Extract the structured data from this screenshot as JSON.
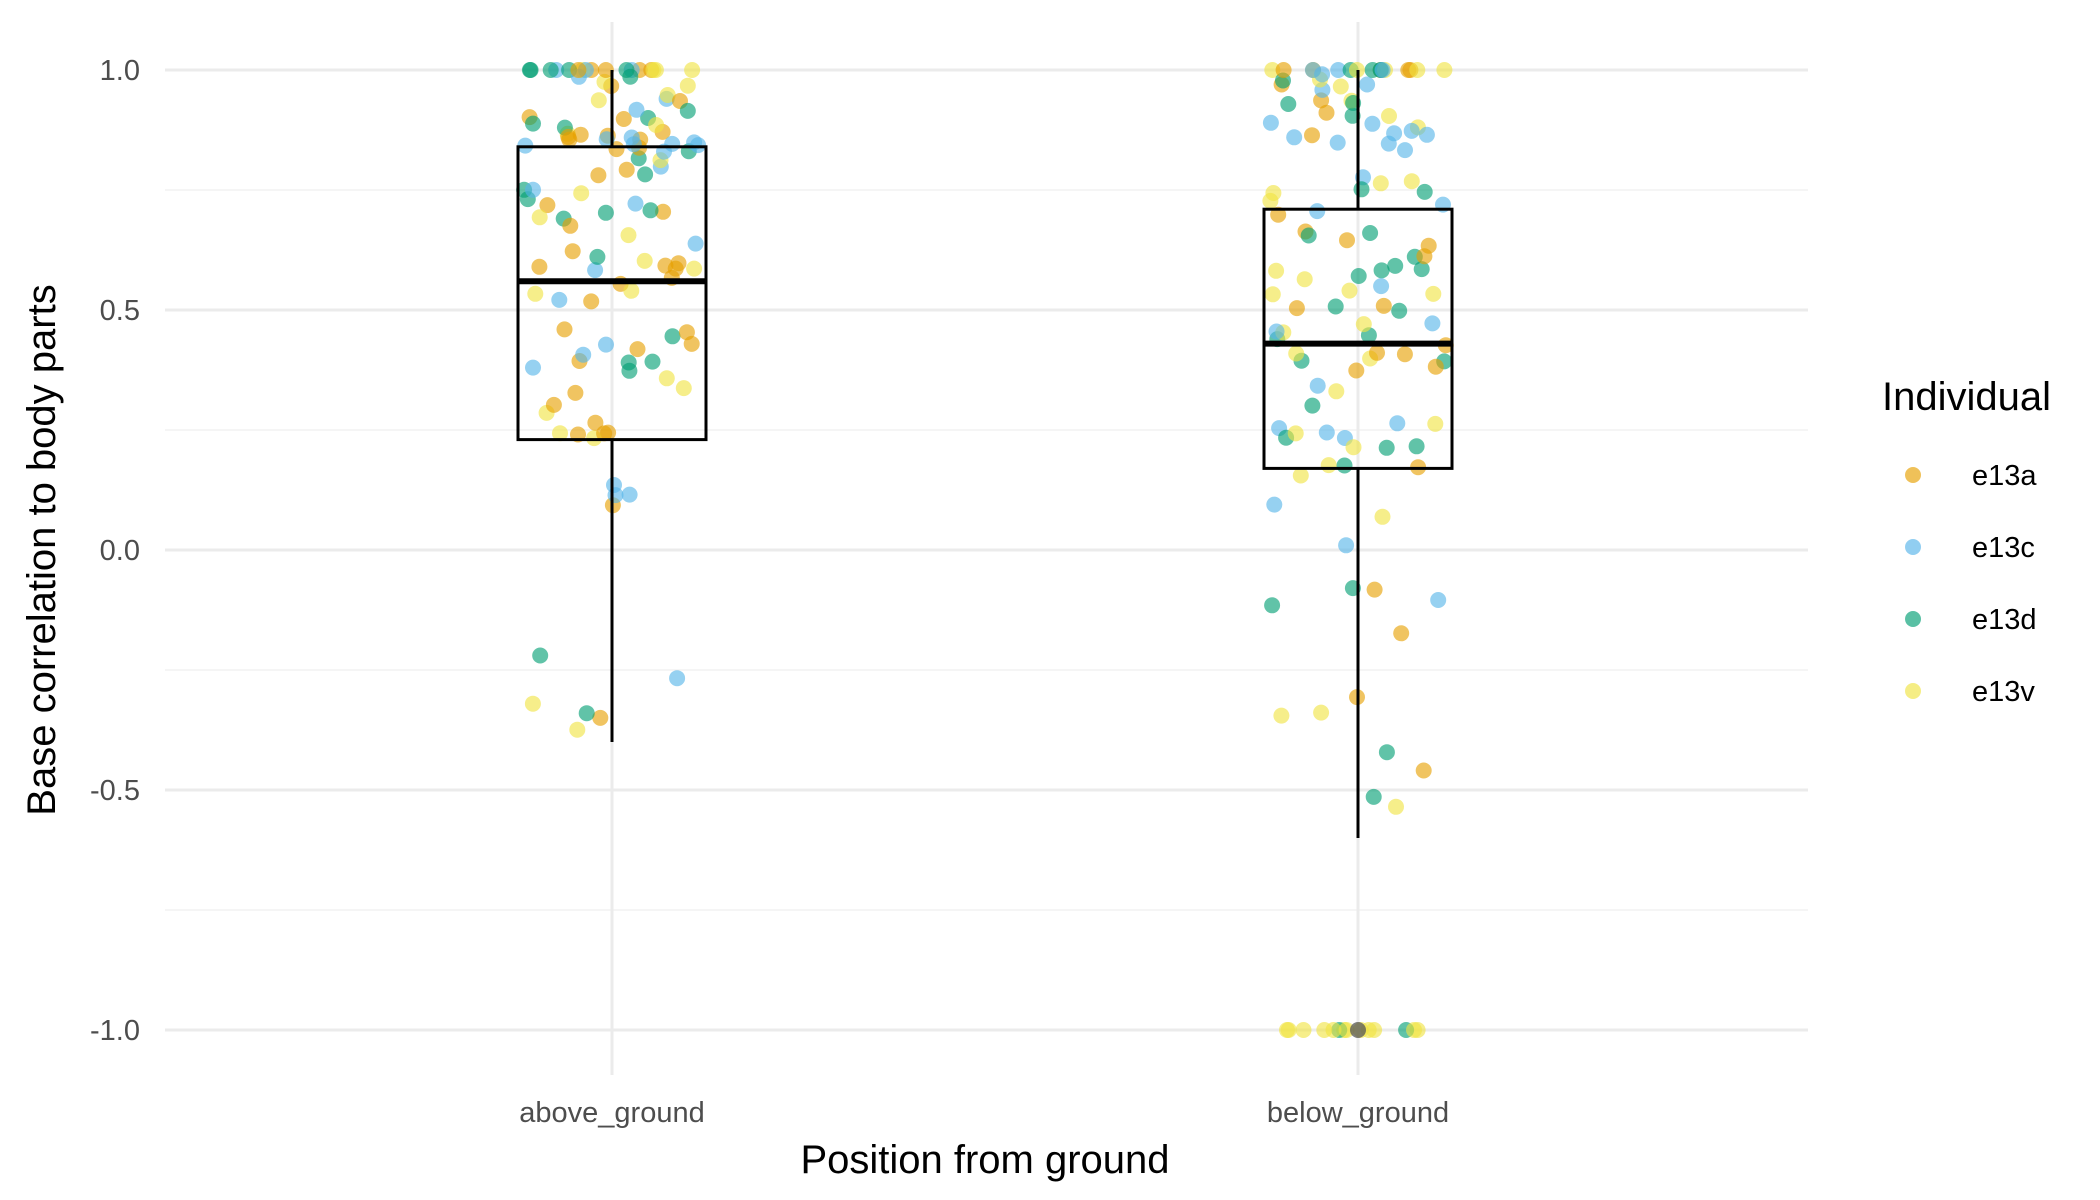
{
  "chart_data": {
    "type": "box-jitter",
    "xlabel": "Position from ground",
    "ylabel": "Base correlation to body parts",
    "categories": [
      "above_ground",
      "below_ground"
    ],
    "ylim": [
      -1.1,
      1.1
    ],
    "yticks": [
      "1.0",
      "0.5",
      "0.0",
      "-0.5",
      "-1.0"
    ],
    "ytick_values": [
      1.0,
      0.5,
      0.0,
      -0.5,
      -1.0
    ],
    "grid": true,
    "legend": {
      "title": "Individual",
      "position": "right",
      "entries": [
        "e13a",
        "e13c",
        "e13d",
        "e13v"
      ]
    },
    "series": [
      {
        "name": "e13a",
        "color": "#E69F00"
      },
      {
        "name": "e13c",
        "color": "#56B4E9"
      },
      {
        "name": "e13d",
        "color": "#009E73"
      },
      {
        "name": "e13v",
        "color": "#F0E442"
      }
    ],
    "boxes": [
      {
        "category": "above_ground",
        "lower_whisker": -0.4,
        "q1": 0.23,
        "median": 0.56,
        "q3": 0.84,
        "upper_whisker": 1.0
      },
      {
        "category": "below_ground",
        "lower_whisker": -0.6,
        "q1": 0.17,
        "median": 0.43,
        "q3": 0.71,
        "upper_whisker": 1.0,
        "outliers": [
          -1.0
        ]
      }
    ],
    "points_per_group": 120
  }
}
